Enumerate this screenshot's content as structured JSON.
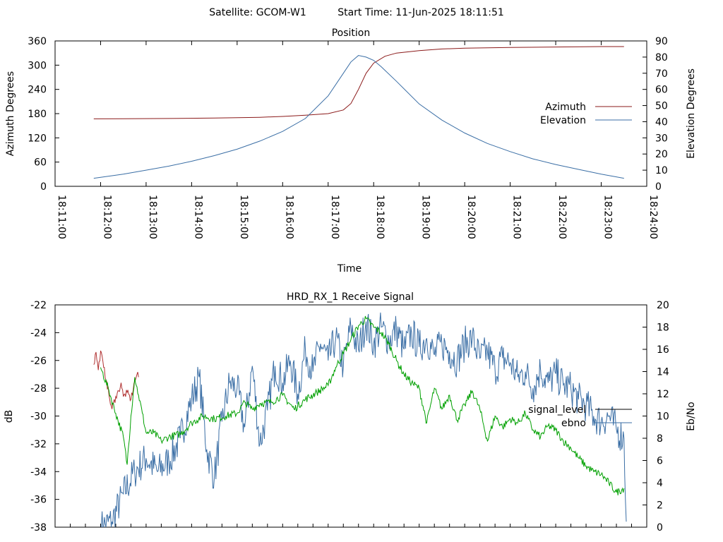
{
  "header": {
    "satellite": "Satellite: GCOM-W1",
    "start_time": "Start Time: 11-Jun-2025 18:11:51"
  },
  "colors": {
    "azimuth": "#8b1a1a",
    "elevation": "#3a6ea5",
    "signal_level_red": "#b03030",
    "signal_level_green": "#00a000",
    "ebno": "#3a6ea5",
    "legend_signal": "#000000"
  },
  "chart_data": [
    {
      "type": "line",
      "title": "Position",
      "xlabel": "Time",
      "ylabel": "Azimuth Degrees",
      "y2label": "Elevation Degrees",
      "x_ticks": [
        "18:11:00",
        "18:12:00",
        "18:13:00",
        "18:14:00",
        "18:15:00",
        "18:16:00",
        "18:17:00",
        "18:18:00",
        "18:19:00",
        "18:20:00",
        "18:21:00",
        "18:22:00",
        "18:23:00",
        "18:24:00"
      ],
      "xlim": [
        "18:11:00",
        "18:24:00"
      ],
      "ylim": [
        0,
        360
      ],
      "y_ticks": [
        0,
        60,
        120,
        180,
        240,
        300,
        360
      ],
      "y2lim": [
        0,
        90
      ],
      "y2_ticks": [
        0,
        10,
        20,
        30,
        40,
        50,
        60,
        70,
        80,
        90
      ],
      "legend_position": "right",
      "grid": false,
      "series": [
        {
          "name": "Azimuth",
          "axis": "y",
          "points": [
            [
              "18:11:51",
              167
            ],
            [
              "18:12:30",
              167.5
            ],
            [
              "18:13:30",
              168
            ],
            [
              "18:14:30",
              169
            ],
            [
              "18:15:30",
              171
            ],
            [
              "18:16:00",
              173
            ],
            [
              "18:16:30",
              176
            ],
            [
              "18:17:00",
              180
            ],
            [
              "18:17:20",
              189
            ],
            [
              "18:17:30",
              205
            ],
            [
              "18:17:40",
              240
            ],
            [
              "18:17:50",
              280
            ],
            [
              "18:18:00",
              305
            ],
            [
              "18:18:15",
              322
            ],
            [
              "18:18:30",
              330
            ],
            [
              "18:19:00",
              336
            ],
            [
              "18:19:30",
              340
            ],
            [
              "18:20:00",
              342
            ],
            [
              "18:21:00",
              344
            ],
            [
              "18:22:00",
              345
            ],
            [
              "18:23:00",
              346
            ],
            [
              "18:23:30",
              346
            ]
          ]
        },
        {
          "name": "Elevation",
          "axis": "y2",
          "points": [
            [
              "18:11:51",
              5
            ],
            [
              "18:12:30",
              7.5
            ],
            [
              "18:13:00",
              10
            ],
            [
              "18:13:30",
              12.5
            ],
            [
              "18:14:00",
              15.5
            ],
            [
              "18:14:30",
              19
            ],
            [
              "18:15:00",
              23
            ],
            [
              "18:15:30",
              28
            ],
            [
              "18:16:00",
              34
            ],
            [
              "18:16:30",
              42
            ],
            [
              "18:17:00",
              56
            ],
            [
              "18:17:20",
              70
            ],
            [
              "18:17:30",
              77
            ],
            [
              "18:17:40",
              81
            ],
            [
              "18:17:50",
              80
            ],
            [
              "18:18:00",
              78
            ],
            [
              "18:18:10",
              74
            ],
            [
              "18:18:30",
              65
            ],
            [
              "18:19:00",
              51
            ],
            [
              "18:19:30",
              41
            ],
            [
              "18:20:00",
              33
            ],
            [
              "18:20:30",
              26.5
            ],
            [
              "18:21:00",
              21.5
            ],
            [
              "18:21:30",
              17
            ],
            [
              "18:22:00",
              13.5
            ],
            [
              "18:22:30",
              10.5
            ],
            [
              "18:23:00",
              7.5
            ],
            [
              "18:23:30",
              5
            ]
          ]
        }
      ]
    },
    {
      "type": "line",
      "title": "HRD_RX_1 Receive Signal",
      "ylabel": "dB",
      "y2label": "Eb/No",
      "xlim": [
        "18:11:00",
        "18:24:00"
      ],
      "ylim": [
        -38,
        -22
      ],
      "y_ticks": [
        -38,
        -36,
        -34,
        -32,
        -30,
        -28,
        -26,
        -24,
        -22
      ],
      "y2lim": [
        0,
        20
      ],
      "y2_ticks": [
        0,
        2,
        4,
        6,
        8,
        10,
        12,
        14,
        16,
        18,
        20
      ],
      "legend_position": "right",
      "grid": false,
      "series": [
        {
          "name": "signal_level",
          "axis": "y",
          "segments": [
            {
              "color": "red",
              "points": [
                [
                  "18:11:51",
                  -26.3
                ],
                [
                  "18:11:54",
                  -25.4
                ],
                [
                  "18:11:57",
                  -26.7
                ],
                [
                  "18:12:00",
                  -25.3
                ],
                [
                  "18:12:04",
                  -26.5
                ],
                [
                  "18:12:08",
                  -27.5
                ],
                [
                  "18:12:12",
                  -28.8
                ],
                [
                  "18:12:15",
                  -29.5
                ],
                [
                  "18:12:20",
                  -28.6
                ],
                [
                  "18:12:24",
                  -28.2
                ],
                [
                  "18:12:27",
                  -27.6
                ],
                [
                  "18:12:30",
                  -28.6
                ],
                [
                  "18:12:35",
                  -28.3
                ],
                [
                  "18:12:40",
                  -28.8
                ],
                [
                  "18:12:45",
                  -27.5
                ],
                [
                  "18:12:48",
                  -27.0
                ],
                [
                  "18:12:50",
                  -27.2
                ]
              ]
            },
            {
              "color": "green",
              "points": [
                [
                  "18:12:00",
                  -26.5
                ],
                [
                  "18:12:10",
                  -28.0
                ],
                [
                  "18:12:20",
                  -29.8
                ],
                [
                  "18:12:30",
                  -31.5
                ],
                [
                  "18:12:35",
                  -33.5
                ],
                [
                  "18:12:40",
                  -30.0
                ],
                [
                  "18:12:45",
                  -27.2
                ],
                [
                  "18:12:50",
                  -28.5
                ],
                [
                  "18:12:55",
                  -29.8
                ],
                [
                  "18:13:00",
                  -31.2
                ],
                [
                  "18:13:10",
                  -31.2
                ],
                [
                  "18:13:20",
                  -31.8
                ],
                [
                  "18:13:30",
                  -31.5
                ],
                [
                  "18:13:45",
                  -31.3
                ],
                [
                  "18:14:00",
                  -30.5
                ],
                [
                  "18:14:15",
                  -30.0
                ],
                [
                  "18:14:30",
                  -30.2
                ],
                [
                  "18:14:45",
                  -30.0
                ],
                [
                  "18:15:00",
                  -29.8
                ],
                [
                  "18:15:10",
                  -29.0
                ],
                [
                  "18:15:20",
                  -29.5
                ],
                [
                  "18:15:30",
                  -29.1
                ],
                [
                  "18:15:45",
                  -29.0
                ],
                [
                  "18:16:00",
                  -28.5
                ],
                [
                  "18:16:15",
                  -29.5
                ],
                [
                  "18:16:30",
                  -28.8
                ],
                [
                  "18:16:45",
                  -28.3
                ],
                [
                  "18:17:00",
                  -27.8
                ],
                [
                  "18:17:10",
                  -26.5
                ],
                [
                  "18:17:20",
                  -25.5
                ],
                [
                  "18:17:30",
                  -24.5
                ],
                [
                  "18:17:40",
                  -23.5
                ],
                [
                  "18:17:50",
                  -23.0
                ],
                [
                  "18:18:00",
                  -23.6
                ],
                [
                  "18:18:10",
                  -24.0
                ],
                [
                  "18:18:20",
                  -24.8
                ],
                [
                  "18:18:30",
                  -26.0
                ],
                [
                  "18:18:40",
                  -27.0
                ],
                [
                  "18:18:50",
                  -27.6
                ],
                [
                  "18:19:00",
                  -28.0
                ],
                [
                  "18:19:10",
                  -30.5
                ],
                [
                  "18:19:20",
                  -28.0
                ],
                [
                  "18:19:30",
                  -29.5
                ],
                [
                  "18:19:40",
                  -28.5
                ],
                [
                  "18:19:50",
                  -30.3
                ],
                [
                  "18:20:00",
                  -29.2
                ],
                [
                  "18:20:10",
                  -28.2
                ],
                [
                  "18:20:20",
                  -29.5
                ],
                [
                  "18:20:30",
                  -31.8
                ],
                [
                  "18:20:40",
                  -30.0
                ],
                [
                  "18:20:50",
                  -30.8
                ],
                [
                  "18:21:00",
                  -30.2
                ],
                [
                  "18:21:10",
                  -30.5
                ],
                [
                  "18:21:20",
                  -29.8
                ],
                [
                  "18:21:30",
                  -31.0
                ],
                [
                  "18:21:40",
                  -31.5
                ],
                [
                  "18:21:50",
                  -30.7
                ],
                [
                  "18:22:00",
                  -31.0
                ],
                [
                  "18:22:10",
                  -31.8
                ],
                [
                  "18:22:20",
                  -32.3
                ],
                [
                  "18:22:30",
                  -33.0
                ],
                [
                  "18:22:40",
                  -33.6
                ],
                [
                  "18:22:50",
                  -34.0
                ],
                [
                  "18:23:00",
                  -34.2
                ],
                [
                  "18:23:10",
                  -34.8
                ],
                [
                  "18:23:20",
                  -35.5
                ],
                [
                  "18:23:30",
                  -35.2
                ]
              ]
            }
          ]
        },
        {
          "name": "ebno",
          "axis": "y2",
          "points": [
            [
              "18:12:00",
              0
            ],
            [
              "18:12:15",
              0.5
            ],
            [
              "18:12:30",
              3.0
            ],
            [
              "18:12:45",
              5.0
            ],
            [
              "18:13:00",
              6.2
            ],
            [
              "18:13:15",
              5.0
            ],
            [
              "18:13:30",
              6.0
            ],
            [
              "18:13:45",
              8.0
            ],
            [
              "18:14:00",
              11.5
            ],
            [
              "18:14:10",
              13.5
            ],
            [
              "18:14:20",
              7.0
            ],
            [
              "18:14:30",
              4.5
            ],
            [
              "18:14:40",
              9.5
            ],
            [
              "18:14:50",
              13.0
            ],
            [
              "18:15:00",
              12.5
            ],
            [
              "18:15:10",
              9.0
            ],
            [
              "18:15:20",
              14.5
            ],
            [
              "18:15:30",
              7.5
            ],
            [
              "18:15:40",
              10.5
            ],
            [
              "18:15:50",
              14.5
            ],
            [
              "18:16:00",
              13.0
            ],
            [
              "18:16:10",
              15.0
            ],
            [
              "18:16:20",
              12.0
            ],
            [
              "18:16:30",
              16.0
            ],
            [
              "18:16:40",
              14.0
            ],
            [
              "18:16:50",
              16.5
            ],
            [
              "18:17:00",
              15.0
            ],
            [
              "18:17:10",
              17.0
            ],
            [
              "18:17:20",
              14.5
            ],
            [
              "18:17:30",
              18.0
            ],
            [
              "18:17:40",
              16.0
            ],
            [
              "18:17:50",
              18.5
            ],
            [
              "18:18:00",
              16.5
            ],
            [
              "18:18:10",
              18.0
            ],
            [
              "18:18:20",
              16.8
            ],
            [
              "18:18:30",
              17.8
            ],
            [
              "18:18:40",
              16.0
            ],
            [
              "18:18:50",
              17.5
            ],
            [
              "18:19:00",
              16.2
            ],
            [
              "18:19:10",
              17.0
            ],
            [
              "18:19:20",
              15.5
            ],
            [
              "18:19:30",
              16.5
            ],
            [
              "18:19:40",
              15.8
            ],
            [
              "18:19:50",
              15.0
            ],
            [
              "18:20:00",
              16.5
            ],
            [
              "18:20:10",
              17.0
            ],
            [
              "18:20:20",
              15.2
            ],
            [
              "18:20:30",
              15.8
            ],
            [
              "18:20:40",
              14.2
            ],
            [
              "18:20:50",
              15.2
            ],
            [
              "18:21:00",
              14.8
            ],
            [
              "18:21:10",
              13.5
            ],
            [
              "18:21:20",
              14.0
            ],
            [
              "18:21:30",
              12.5
            ],
            [
              "18:21:40",
              14.2
            ],
            [
              "18:21:50",
              13.0
            ],
            [
              "18:22:00",
              13.8
            ],
            [
              "18:22:10",
              12.8
            ],
            [
              "18:22:20",
              12.5
            ],
            [
              "18:22:30",
              11.5
            ],
            [
              "18:22:40",
              11.0
            ],
            [
              "18:22:50",
              10.0
            ],
            [
              "18:23:00",
              9.5
            ],
            [
              "18:23:10",
              10.0
            ],
            [
              "18:23:20",
              8.8
            ],
            [
              "18:23:30",
              8.0
            ],
            [
              "18:23:33",
              0.5
            ]
          ]
        }
      ]
    }
  ]
}
